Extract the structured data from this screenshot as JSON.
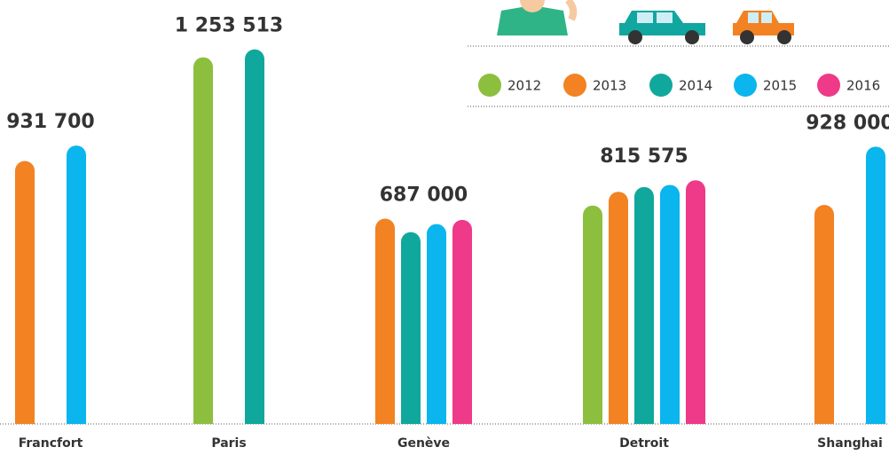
{
  "chart_data": {
    "type": "bar",
    "categories": [
      "Francfort",
      "Paris",
      "Genève",
      "Detroit",
      "Shanghai"
    ],
    "series": [
      {
        "name": "2012",
        "color": "#8dbf3f",
        "values": [
          null,
          1227000,
          null,
          731000,
          null
        ],
        "value_labels": [
          null,
          null,
          null,
          null,
          null
        ]
      },
      {
        "name": "2013",
        "color": "#f28222",
        "values": [
          880000,
          null,
          687000,
          777000,
          733000
        ],
        "value_labels": [
          null,
          null,
          "687 000",
          null,
          null
        ]
      },
      {
        "name": "2014",
        "color": "#10a89c",
        "values": [
          null,
          1253513,
          642000,
          793000,
          null
        ],
        "value_labels": [
          null,
          "1 253 513",
          null,
          null,
          null
        ]
      },
      {
        "name": "2015",
        "color": "#0bb5ee",
        "values": [
          931700,
          null,
          669000,
          800000,
          928000
        ],
        "value_labels": [
          "931 700",
          null,
          null,
          null,
          "928 000"
        ]
      },
      {
        "name": "2016",
        "color": "#ee3a88",
        "values": [
          null,
          null,
          683000,
          815575,
          null
        ],
        "value_labels": [
          null,
          null,
          null,
          "815 575",
          null
        ]
      }
    ],
    "ylim": [
      0,
      1300000
    ],
    "legend": "top-right"
  }
}
